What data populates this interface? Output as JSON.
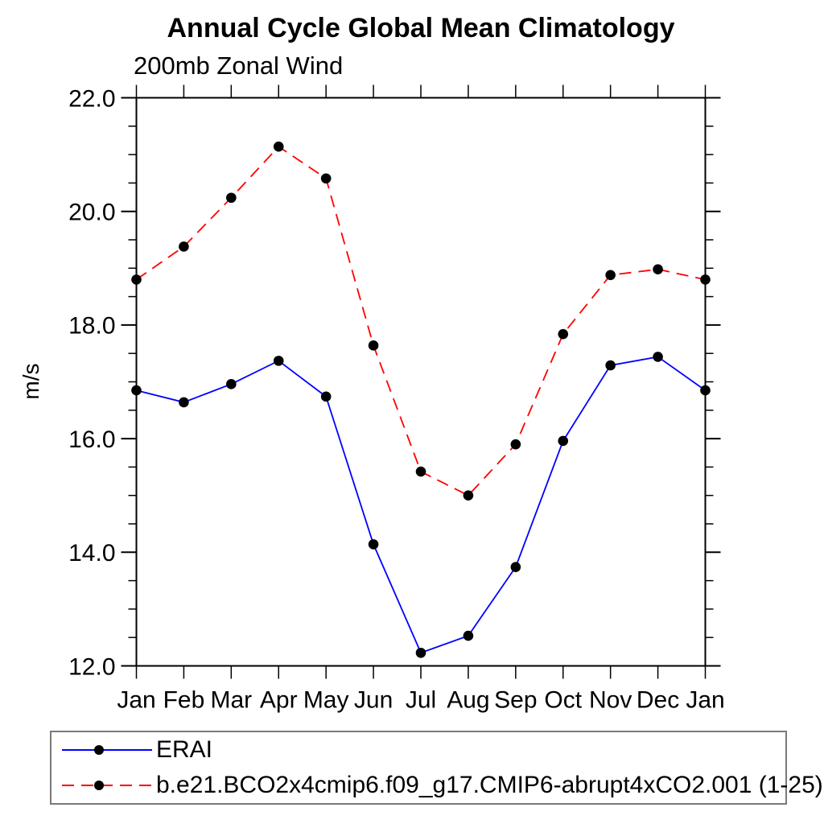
{
  "title": "Annual Cycle Global Mean Climatology",
  "subtitle": "200mb Zonal Wind",
  "chart_data": {
    "type": "line",
    "x_categories": [
      "Jan",
      "Feb",
      "Mar",
      "Apr",
      "May",
      "Jun",
      "Jul",
      "Aug",
      "Sep",
      "Oct",
      "Nov",
      "Dec",
      "Jan"
    ],
    "xlabel": "",
    "ylabel": "m/s",
    "ylim": [
      12.0,
      22.0
    ],
    "ytick_labels": [
      "12.0",
      "14.0",
      "16.0",
      "18.0",
      "20.0",
      "22.0"
    ],
    "ytick_values": [
      12.0,
      14.0,
      16.0,
      18.0,
      20.0,
      22.0
    ],
    "ytick_minor_step": 0.5,
    "grid": false,
    "legend_position": "bottom-left",
    "series": [
      {
        "name": "ERAI",
        "line_style": "solid",
        "line_color": "#0000ff",
        "marker_color": "#000000",
        "values": [
          16.85,
          16.64,
          16.96,
          17.37,
          16.74,
          14.14,
          12.23,
          12.53,
          13.74,
          15.96,
          17.29,
          17.44,
          16.85
        ]
      },
      {
        "name": "b.e21.BCO2x4cmip6.f09_g17.CMIP6-abrupt4xCO2.001 (1-25)",
        "line_style": "dashed",
        "line_color": "#ff0000",
        "marker_color": "#000000",
        "values": [
          18.8,
          19.38,
          20.24,
          21.14,
          20.58,
          17.64,
          15.42,
          15.0,
          15.9,
          17.84,
          18.88,
          18.98,
          18.8
        ]
      }
    ]
  }
}
